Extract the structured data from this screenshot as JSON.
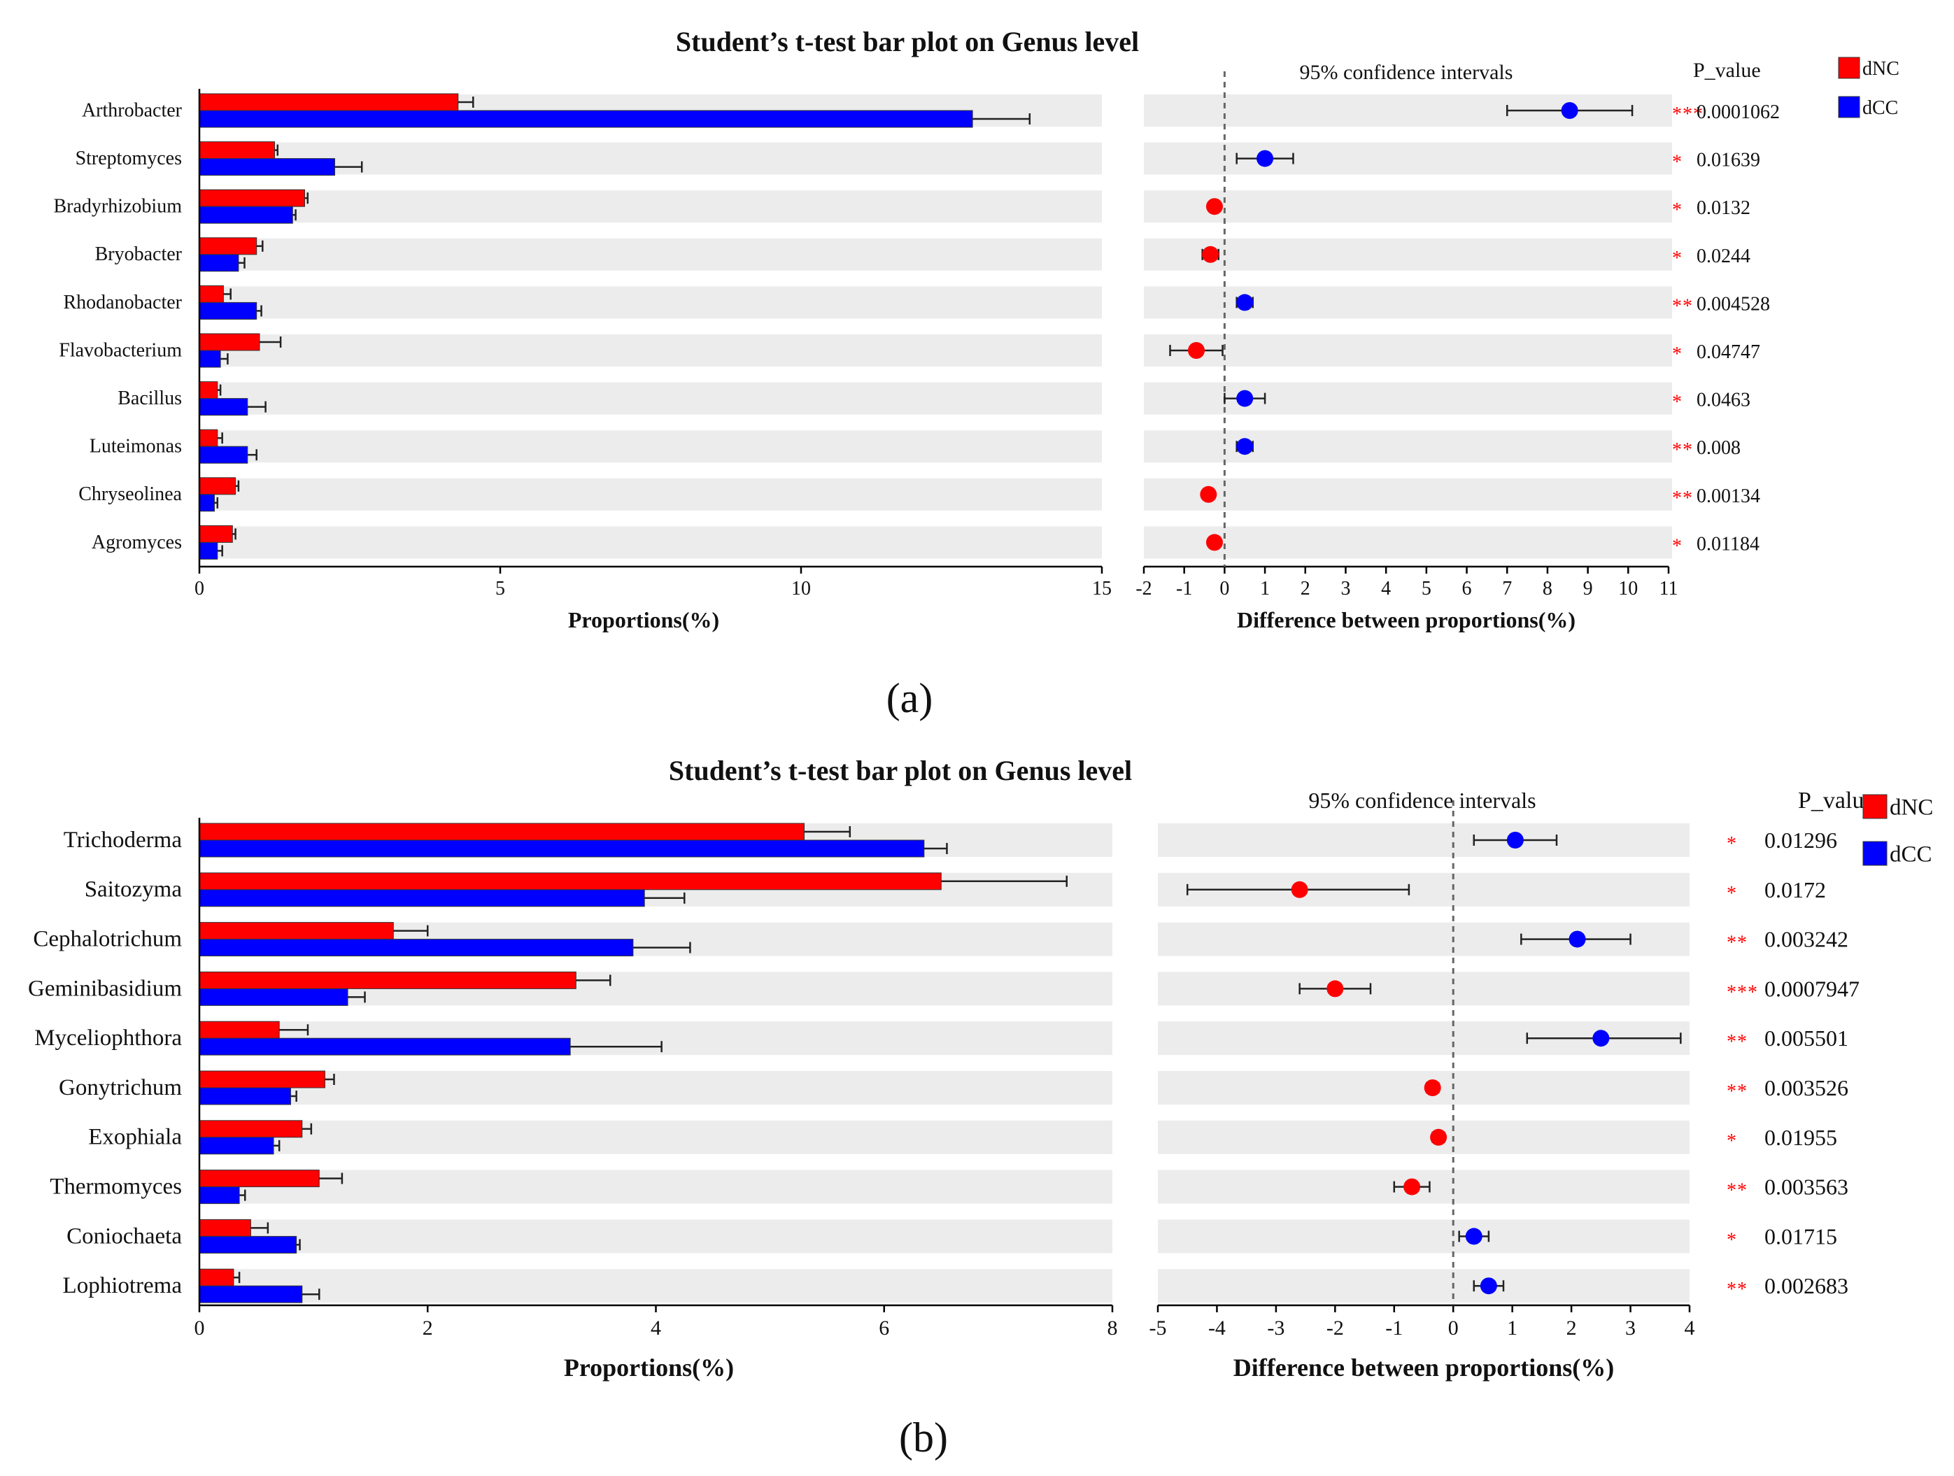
{
  "colors": {
    "dNC": "#ff0000",
    "dCC": "#0000ff",
    "band": "#ececec",
    "significance": "#ff0000"
  },
  "chart_data": [
    {
      "panel_label": "(a)",
      "type": "bar",
      "title": "Student’s t-test bar plot on Genus level",
      "xlabel": "Proportions(%)",
      "xlim": [
        0,
        15
      ],
      "xticks": [
        "0",
        "5",
        "10",
        "15"
      ],
      "categories": [
        "Arthrobacter",
        "Streptomyces",
        "Bradyrhizobium",
        "Bryobacter",
        "Rhodanobacter",
        "Flavobacterium",
        "Bacillus",
        "Luteimonas",
        "Chryseolinea",
        "Agromyces"
      ],
      "series": [
        {
          "name": "dNC",
          "values": [
            4.3,
            1.25,
            1.75,
            0.95,
            0.4,
            1.0,
            0.3,
            0.3,
            0.6,
            0.55
          ],
          "errors": [
            0.25,
            0.05,
            0.05,
            0.1,
            0.12,
            0.35,
            0.05,
            0.08,
            0.05,
            0.05
          ]
        },
        {
          "name": "dCC",
          "values": [
            12.85,
            2.25,
            1.55,
            0.65,
            0.95,
            0.35,
            0.8,
            0.8,
            0.25,
            0.3
          ],
          "errors": [
            0.95,
            0.45,
            0.05,
            0.1,
            0.08,
            0.12,
            0.3,
            0.15,
            0.05,
            0.08
          ]
        }
      ],
      "legend": [
        "dNC",
        "dCC"
      ],
      "ci": {
        "title": "95% confidence intervals",
        "xlabel": "Difference between proportions(%)",
        "xlim": [
          -2,
          11
        ],
        "xticks": [
          "-2",
          "-1",
          "0",
          "1",
          "2",
          "3",
          "4",
          "5",
          "6",
          "7",
          "8",
          "9",
          "10",
          "11"
        ],
        "diff": [
          8.55,
          1.0,
          -0.25,
          -0.35,
          0.5,
          -0.7,
          0.5,
          0.5,
          -0.4,
          -0.25
        ],
        "lower": [
          7.0,
          0.3,
          -0.35,
          -0.55,
          0.3,
          -1.35,
          0.0,
          0.3,
          -0.5,
          -0.35
        ],
        "upper": [
          10.1,
          1.7,
          -0.15,
          -0.15,
          0.7,
          -0.05,
          1.0,
          0.7,
          -0.3,
          -0.15
        ],
        "group": [
          "dCC",
          "dCC",
          "dNC",
          "dNC",
          "dCC",
          "dNC",
          "dCC",
          "dCC",
          "dNC",
          "dNC"
        ]
      },
      "pvalue_title": "P_value",
      "stars": [
        "***",
        "*",
        "*",
        "*",
        "**",
        "*",
        "*",
        "**",
        "**",
        "*"
      ],
      "pvalues": [
        "0.0001062",
        "0.01639",
        "0.0132",
        "0.0244",
        "0.004528",
        "0.04747",
        "0.0463",
        "0.008",
        "0.00134",
        "0.01184"
      ]
    },
    {
      "panel_label": "(b)",
      "type": "bar",
      "title": "Student’s t-test bar plot on Genus level",
      "xlabel": "Proportions(%)",
      "xlim": [
        0,
        8
      ],
      "xticks": [
        "0",
        "2",
        "4",
        "6",
        "8"
      ],
      "categories": [
        "Trichoderma",
        "Saitozyma",
        "Cephalotrichum",
        "Geminibasidium",
        "Myceliophthora",
        "Gonytrichum",
        "Exophiala",
        "Thermomyces",
        "Coniochaeta",
        "Lophiotrema"
      ],
      "series": [
        {
          "name": "dNC",
          "values": [
            5.3,
            6.5,
            1.7,
            3.3,
            0.7,
            1.1,
            0.9,
            1.05,
            0.45,
            0.3
          ],
          "errors": [
            0.4,
            1.1,
            0.3,
            0.3,
            0.25,
            0.08,
            0.08,
            0.2,
            0.15,
            0.05
          ]
        },
        {
          "name": "dCC",
          "values": [
            6.35,
            3.9,
            3.8,
            1.3,
            3.25,
            0.8,
            0.65,
            0.35,
            0.85,
            0.9
          ],
          "errors": [
            0.2,
            0.35,
            0.5,
            0.15,
            0.8,
            0.05,
            0.05,
            0.05,
            0.03,
            0.15
          ]
        }
      ],
      "legend": [
        "dNC",
        "dCC"
      ],
      "ci": {
        "title": "95% confidence intervals",
        "xlabel": "Difference between proportions(%)",
        "xlim": [
          -5,
          4
        ],
        "xticks": [
          "-5",
          "-4",
          "-3",
          "-2",
          "-1",
          "0",
          "1",
          "2",
          "3",
          "4"
        ],
        "diff": [
          1.05,
          -2.6,
          2.1,
          -2.0,
          2.5,
          -0.35,
          -0.25,
          -0.7,
          0.35,
          0.6
        ],
        "lower": [
          0.35,
          -4.5,
          1.15,
          -2.6,
          1.25,
          -0.45,
          -0.35,
          -1.0,
          0.1,
          0.35
        ],
        "upper": [
          1.75,
          -0.75,
          3.0,
          -1.4,
          3.85,
          -0.25,
          -0.15,
          -0.4,
          0.6,
          0.85
        ],
        "group": [
          "dCC",
          "dNC",
          "dCC",
          "dNC",
          "dCC",
          "dNC",
          "dNC",
          "dNC",
          "dCC",
          "dCC"
        ]
      },
      "pvalue_title": "P_value",
      "stars": [
        "*",
        "*",
        "**",
        "***",
        "**",
        "**",
        "*",
        "**",
        "*",
        "**"
      ],
      "pvalues": [
        "0.01296",
        "0.0172",
        "0.003242",
        "0.0007947",
        "0.005501",
        "0.003526",
        "0.01955",
        "0.003563",
        "0.01715",
        "0.002683"
      ]
    }
  ]
}
